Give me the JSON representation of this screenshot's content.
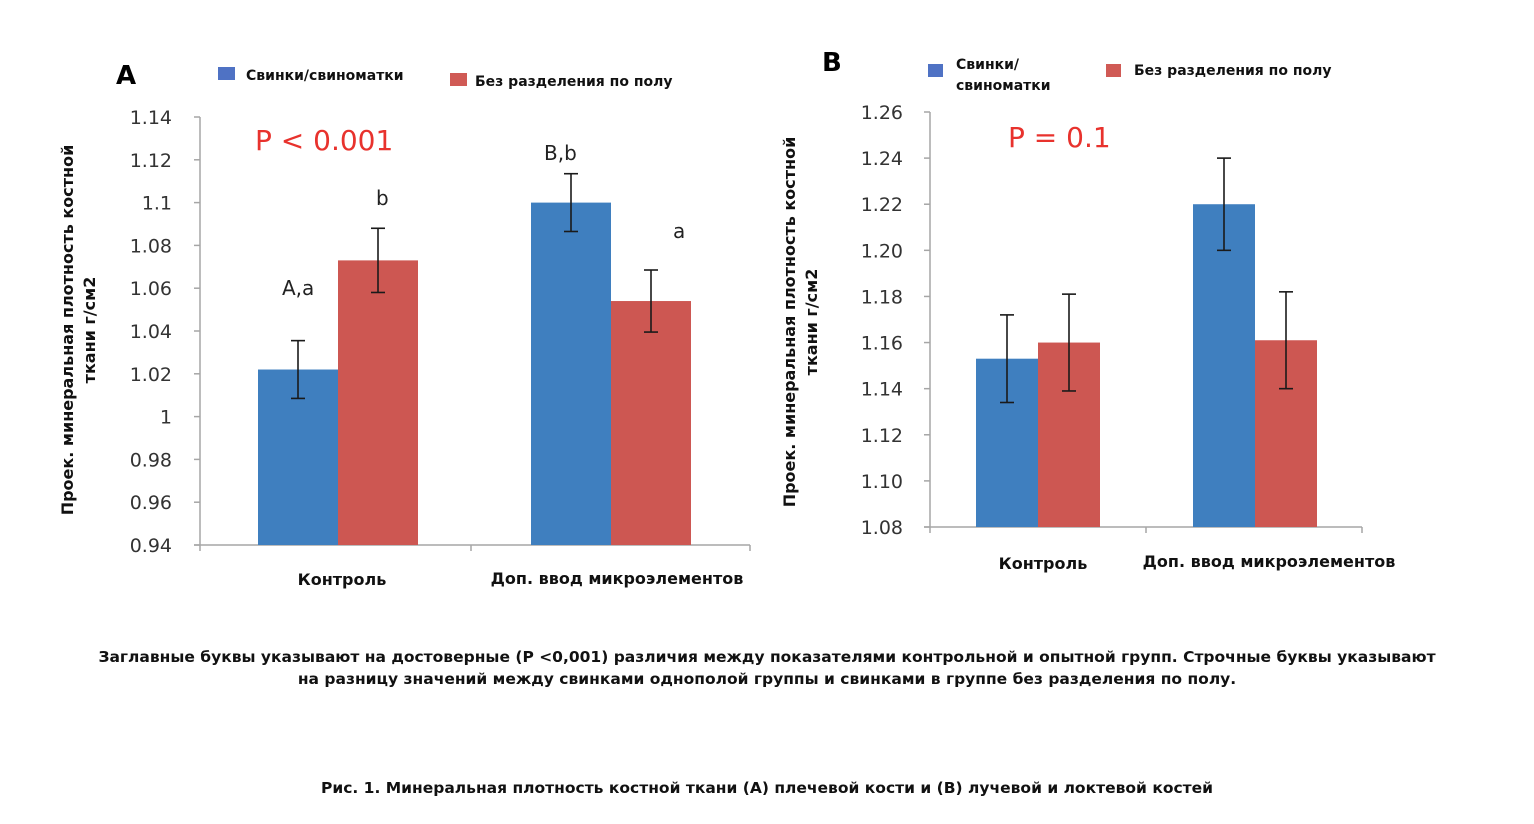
{
  "figure_caption": "Рис. 1. Минеральная плотность костной ткани (A) плечевой кости и (B) лучевой и локтевой костей",
  "note": {
    "line1": "Заглавные буквы указывают на достоверные (P <0,001) различия между показателями контрольной и опытной групп. Строчные буквы указывают",
    "line2": "на разницу значений между свинками однополой группы и свинками в группе без разделения по полу."
  },
  "colors": {
    "series1": "#3f7fbf",
    "series2": "#cd5752",
    "legend1": "#4f72c4",
    "legend2": "#d05a55",
    "pvalue": "#e8322d"
  },
  "chart_data": [
    {
      "type": "bar",
      "panel": "A",
      "ylabel_line1": "Проек. минеральная плотность костной",
      "ylabel_line2": "ткани г/см2",
      "xlabel": "",
      "categories": [
        "Контроль",
        "Доп. ввод микроэлементов"
      ],
      "series": [
        {
          "name": "Свинки/свиноматки",
          "legend_lines": [
            "Свинки/свиноматки"
          ],
          "values": [
            1.022,
            1.1
          ],
          "errors": [
            0.0135,
            0.0135
          ],
          "labels": [
            "A,a",
            "B,b"
          ]
        },
        {
          "name": "Без разделения по полу",
          "legend_lines": [
            "Без разделения по полу"
          ],
          "values": [
            1.073,
            1.054
          ],
          "errors": [
            0.015,
            0.0145
          ],
          "labels": [
            "b",
            "a"
          ]
        }
      ],
      "ylim": [
        0.94,
        1.14
      ],
      "yticks": [
        0.94,
        0.96,
        0.98,
        1,
        1.02,
        1.04,
        1.06,
        1.08,
        1.1,
        1.12,
        1.14
      ],
      "ytick_labels": [
        "0.94",
        "0.96",
        "0.98",
        "1",
        "1.02",
        "1.04",
        "1.06",
        "1.08",
        "1.1",
        "1.12",
        "1.14"
      ],
      "annotation": "P < 0.001",
      "legend_position": "top",
      "grid": false
    },
    {
      "type": "bar",
      "panel": "B",
      "ylabel_line1": "Проек. минеральная плотность костной",
      "ylabel_line2": "ткани г/см2",
      "xlabel": "",
      "categories": [
        "Контроль",
        "Доп. ввод микроэлементов"
      ],
      "series": [
        {
          "name": "Свинки/свиноматки",
          "legend_lines": [
            "Свинки/",
            "свиноматки"
          ],
          "values": [
            1.153,
            1.22
          ],
          "errors": [
            0.019,
            0.02
          ],
          "labels": [
            "",
            ""
          ]
        },
        {
          "name": "Без разделения по полу",
          "legend_lines": [
            "Без разделения по полу"
          ],
          "values": [
            1.16,
            1.161
          ],
          "errors": [
            0.021,
            0.021
          ],
          "labels": [
            "",
            ""
          ]
        }
      ],
      "ylim": [
        1.08,
        1.26
      ],
      "yticks": [
        1.08,
        1.1,
        1.12,
        1.14,
        1.16,
        1.18,
        1.2,
        1.22,
        1.24,
        1.26
      ],
      "ytick_labels": [
        "1.08",
        "1.10",
        "1.12",
        "1.14",
        "1.16",
        "1.18",
        "1.20",
        "1.22",
        "1.24",
        "1.26"
      ],
      "annotation": "P = 0.1",
      "legend_position": "top",
      "grid": false
    }
  ]
}
